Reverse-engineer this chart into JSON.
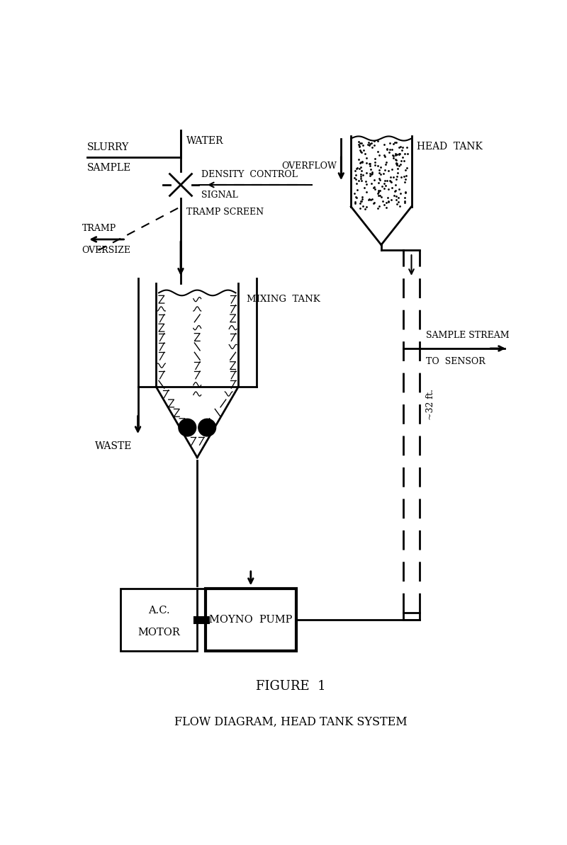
{
  "title": "FLOW DIAGRAM, HEAD TANK SYSTEM",
  "figure_label": "FIGURE  1",
  "background_color": "#ffffff",
  "labels": {
    "head_tank": "HEAD  TANK",
    "overflow": "OVERFLOW",
    "water": "WATER",
    "slurry_sample_1": "SLURRY",
    "slurry_sample_2": "SAMPLE",
    "density_control_1": "DENSITY  CONTROL",
    "density_control_2": "SIGNAL",
    "tramp_screen": "TRAMP SCREEN",
    "tramp_oversize_1": "TRAMP",
    "tramp_oversize_2": "OVERSIZE",
    "mixing_tank": "MIXING  TANK",
    "waste": "WASTE",
    "ac_motor_1": "A.C.",
    "ac_motor_2": "MOTOR",
    "moyno_pump": "MOYNO  PUMP",
    "sample_stream_1": "SAMPLE STREAM",
    "sample_stream_2": "TO  SENSOR",
    "dimension": "~32 ft."
  }
}
